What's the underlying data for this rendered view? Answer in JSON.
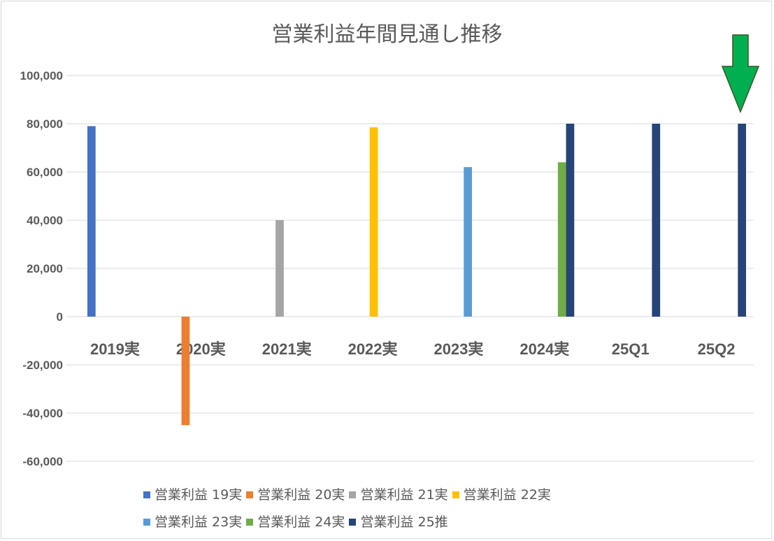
{
  "chart_data": {
    "type": "bar",
    "title": "営業利益年間見通し推移",
    "categories": [
      "2019実",
      "2020実",
      "2021実",
      "2022実",
      "2023実",
      "2024実",
      "25Q1",
      "25Q2"
    ],
    "ylim": [
      -60000,
      100000
    ],
    "yticks": [
      100000,
      80000,
      60000,
      40000,
      20000,
      0,
      -20000,
      -40000,
      -60000
    ],
    "ytick_labels": [
      "100,000",
      "80,000",
      "60,000",
      "40,000",
      "20,000",
      "0",
      "-20,000",
      "-40,000",
      "-60,000"
    ],
    "negative_tick_color": "#ff0000",
    "grid": true,
    "legend_position": "bottom",
    "series": [
      {
        "name": "営業利益 19実",
        "color": "#4472c4",
        "values": [
          79000,
          null,
          null,
          null,
          null,
          null,
          null,
          null
        ]
      },
      {
        "name": "営業利益 20実",
        "color": "#ed7d31",
        "values": [
          null,
          -45000,
          null,
          null,
          null,
          null,
          null,
          null
        ]
      },
      {
        "name": "営業利益 21実",
        "color": "#a5a5a5",
        "values": [
          null,
          null,
          40000,
          null,
          null,
          null,
          null,
          null
        ]
      },
      {
        "name": "営業利益 22実",
        "color": "#ffc000",
        "values": [
          null,
          null,
          null,
          78500,
          null,
          null,
          null,
          null
        ]
      },
      {
        "name": "営業利益 23実",
        "color": "#5b9bd5",
        "values": [
          null,
          null,
          null,
          null,
          62000,
          null,
          null,
          null
        ]
      },
      {
        "name": "営業利益 24実",
        "color": "#70ad47",
        "values": [
          null,
          null,
          null,
          null,
          null,
          64000,
          null,
          null
        ]
      },
      {
        "name": "営業利益 25推",
        "color": "#264478",
        "values": [
          null,
          null,
          null,
          null,
          null,
          80000,
          80000,
          80000
        ]
      }
    ],
    "annotation": {
      "type": "down-arrow",
      "color": "#00b050",
      "target_category": "25Q2"
    }
  }
}
